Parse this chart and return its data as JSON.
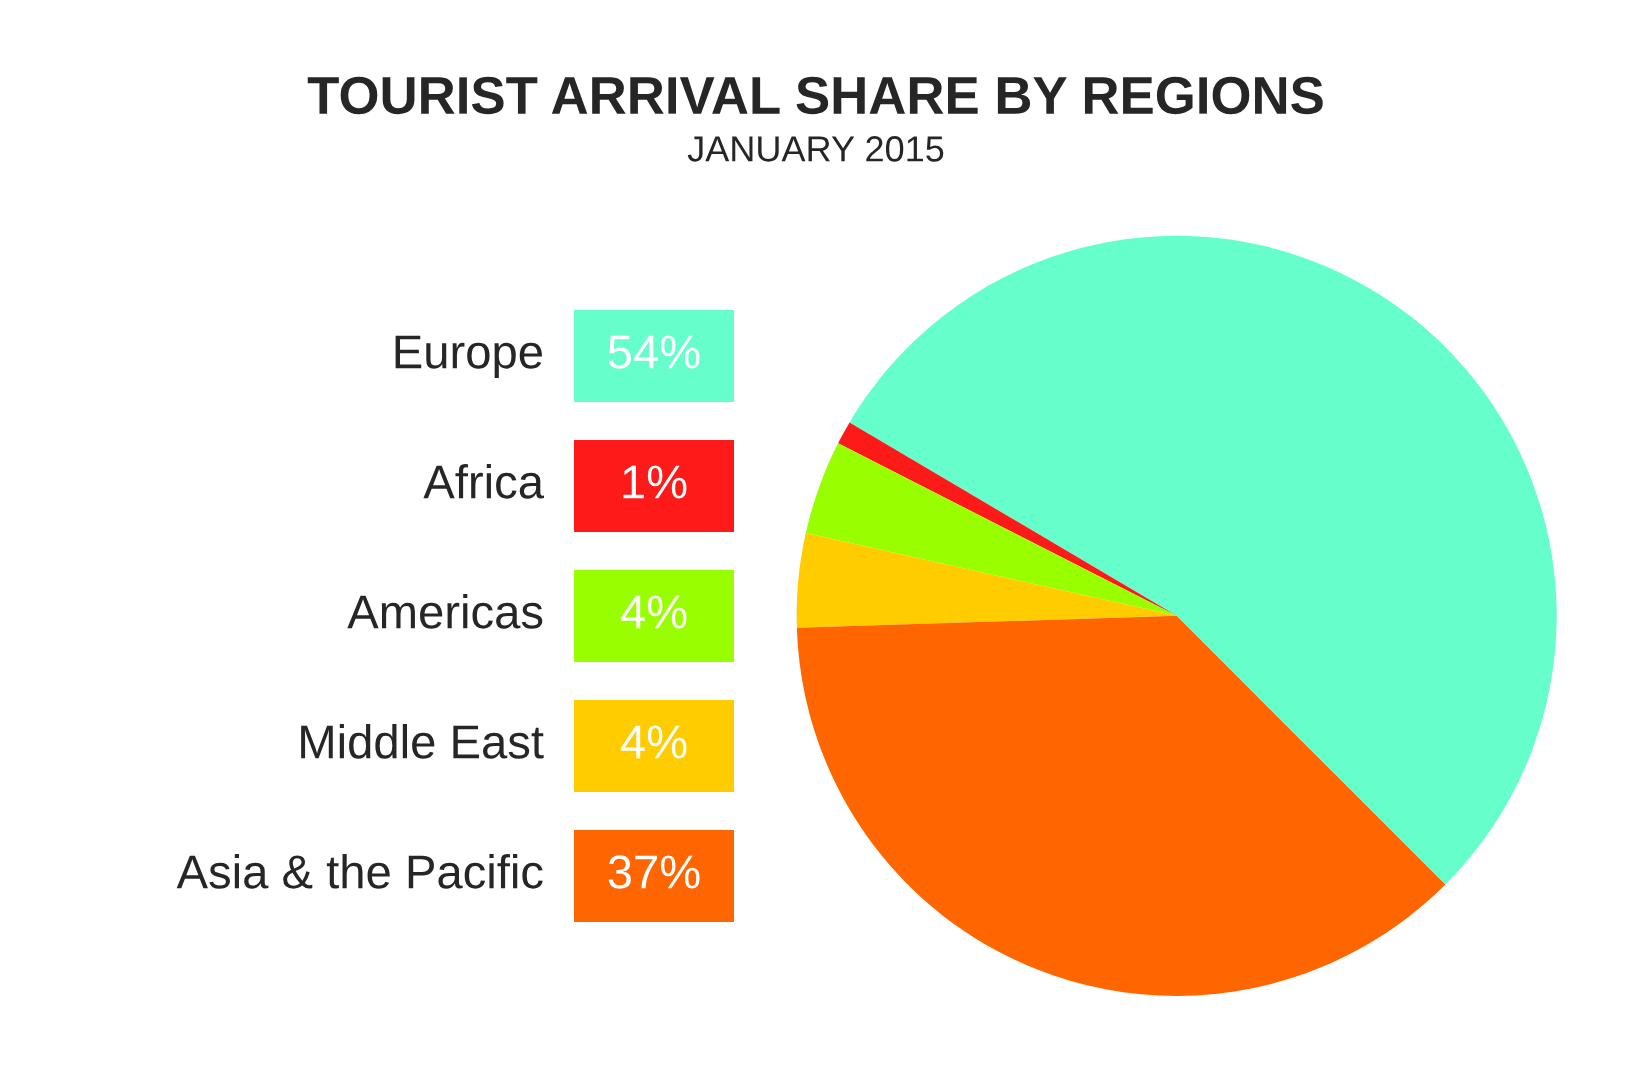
{
  "chart_data": {
    "type": "pie",
    "title": "TOURIST ARRIVAL SHARE BY REGIONS",
    "subtitle": "JANUARY 2015",
    "categories": [
      "Europe",
      "Africa",
      "Americas",
      "Middle East",
      "Asia & the Pacific"
    ],
    "values": [
      54,
      1,
      4,
      4,
      37
    ],
    "value_labels": [
      "54%",
      "1%",
      "4%",
      "4%",
      "37%"
    ],
    "colors": [
      "#66ffcc",
      "#ff1a1a",
      "#99ff00",
      "#ffcc00",
      "#ff6600"
    ],
    "legend": "left"
  }
}
